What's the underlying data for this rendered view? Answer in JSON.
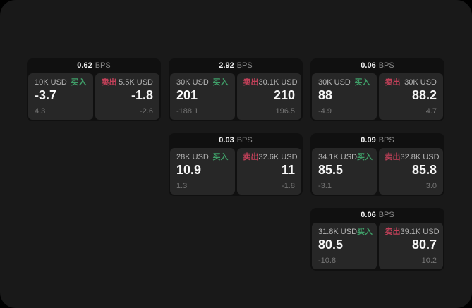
{
  "labels": {
    "bps_unit": "BPS",
    "buy": "买入",
    "sell": "卖出"
  },
  "colors": {
    "page_bg": "#191919",
    "card_bg": "#101010",
    "panel_bg": "#272727",
    "buy_green": "#3f9e68",
    "sell_red": "#c24059",
    "value_white": "#f7f7f7",
    "sub_gray": "#757575"
  },
  "cards": [
    {
      "bps": "0.62",
      "buy": {
        "amount": "10K USD",
        "value": "-3.7",
        "sub": "4.3"
      },
      "sell": {
        "amount": "5.5K USD",
        "value": "-1.8",
        "sub": "-2.6"
      }
    },
    {
      "bps": "2.92",
      "buy": {
        "amount": "30K USD",
        "value": "201",
        "sub": "-188.1"
      },
      "sell": {
        "amount": "30.1K USD",
        "value": "210",
        "sub": "196.5"
      }
    },
    {
      "bps": "0.06",
      "buy": {
        "amount": "30K USD",
        "value": "88",
        "sub": "-4.9"
      },
      "sell": {
        "amount": "30K USD",
        "value": "88.2",
        "sub": "4.7"
      }
    },
    {
      "bps": "0.03",
      "buy": {
        "amount": "28K USD",
        "value": "10.9",
        "sub": "1.3"
      },
      "sell": {
        "amount": "32.6K USD",
        "value": "11",
        "sub": "-1.8"
      }
    },
    {
      "bps": "0.09",
      "buy": {
        "amount": "34.1K USD",
        "value": "85.5",
        "sub": "-3.1"
      },
      "sell": {
        "amount": "32.8K USD",
        "value": "85.8",
        "sub": "3.0"
      }
    },
    {
      "bps": "0.06",
      "buy": {
        "amount": "31.8K USD",
        "value": "80.5",
        "sub": "-10.8"
      },
      "sell": {
        "amount": "39.1K USD",
        "value": "80.7",
        "sub": "10.2"
      }
    }
  ]
}
